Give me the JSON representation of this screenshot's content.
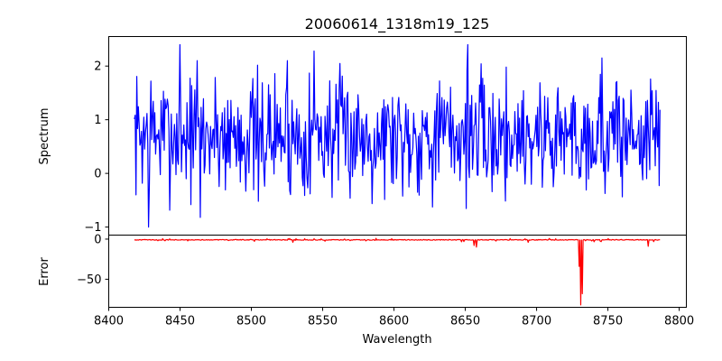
{
  "chart_data": [
    {
      "type": "line",
      "title": "20060614_1318m19_125",
      "xlabel": "",
      "ylabel": "Spectrum",
      "xlim": [
        8400,
        8805
      ],
      "ylim": [
        -1.15,
        2.55
      ],
      "yticks": [
        -1,
        0,
        1,
        2
      ],
      "yticklabels": [
        "−1",
        "0",
        "1",
        "2"
      ],
      "series": [
        {
          "name": "spectrum",
          "color": "#0000ff",
          "x_start": 8418,
          "x_end": 8787,
          "baseline": 0.72,
          "noise_amplitude": 0.55,
          "seed": 7,
          "features": [
            {
              "x": 8428,
              "y": -1.0
            },
            {
              "x": 8429.5,
              "y": 1.72
            },
            {
              "x": 8450,
              "y": 2.4
            },
            {
              "x": 8462,
              "y": 2.1
            },
            {
              "x": 8464,
              "y": -0.82
            },
            {
              "x": 8505,
              "y": -0.52
            },
            {
              "x": 8525,
              "y": 2.1
            },
            {
              "x": 8527,
              "y": -0.32
            },
            {
              "x": 8541,
              "y": -0.38
            },
            {
              "x": 8544,
              "y": 2.28
            },
            {
              "x": 8652,
              "y": 2.4
            },
            {
              "x": 8669,
              "y": -0.34
            },
            {
              "x": 8746,
              "y": 2.15
            }
          ]
        }
      ]
    },
    {
      "type": "line",
      "title": "",
      "xlabel": "Wavelength",
      "ylabel": "Error",
      "xlim": [
        8400,
        8805
      ],
      "ylim": [
        -85,
        5
      ],
      "xticks": [
        8400,
        8450,
        8500,
        8550,
        8600,
        8650,
        8700,
        8750,
        8800
      ],
      "xticklabels": [
        "8400",
        "8450",
        "8500",
        "8550",
        "8600",
        "8650",
        "8700",
        "8750",
        "8800"
      ],
      "yticks": [
        0,
        -50
      ],
      "yticklabels": [
        "0",
        "−50"
      ],
      "series": [
        {
          "name": "error",
          "color": "#ff0000",
          "x_start": 8418,
          "x_end": 8787,
          "baseline": -0.5,
          "seed": 3,
          "features": [
            {
              "x": 8529,
              "y": -4
            },
            {
              "x": 8656,
              "y": -8
            },
            {
              "x": 8658,
              "y": -10
            },
            {
              "x": 8694,
              "y": -4
            },
            {
              "x": 8730,
              "y": -34
            },
            {
              "x": 8731,
              "y": -82
            },
            {
              "x": 8732,
              "y": -68
            },
            {
              "x": 8778,
              "y": -9
            }
          ]
        }
      ]
    }
  ]
}
